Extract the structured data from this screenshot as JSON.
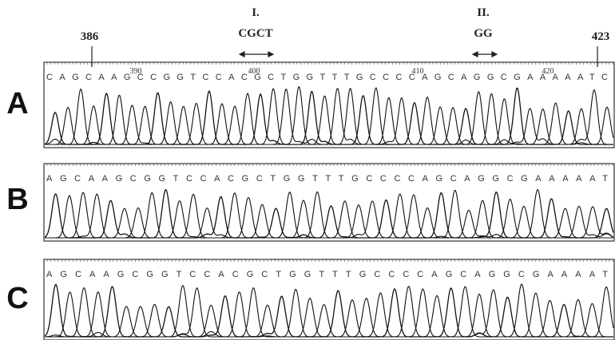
{
  "figure": {
    "top_annotations": {
      "start_position": "386",
      "region_1_label": "I.",
      "region_1_bases": "CGCT",
      "region_2_label": "II.",
      "region_2_bases": "GG",
      "end_position": "423"
    },
    "position_numbers": [
      "390",
      "400",
      "410",
      "420"
    ],
    "panels": [
      {
        "label": "A",
        "sequence": "CAGCAAGCCGGTCCACGCTGGTTTGCCCCAGCAGGCGAAAAATC"
      },
      {
        "label": "B",
        "sequence": "AGCAAGCGGTCCACGCTGGTTTGCCCCAGCAGGCGAAAAAT"
      },
      {
        "label": "C",
        "sequence": "AGCAAGCGGTCCACGCTGGTTTGCCCCAGCAGGCGAAAAT"
      }
    ]
  }
}
